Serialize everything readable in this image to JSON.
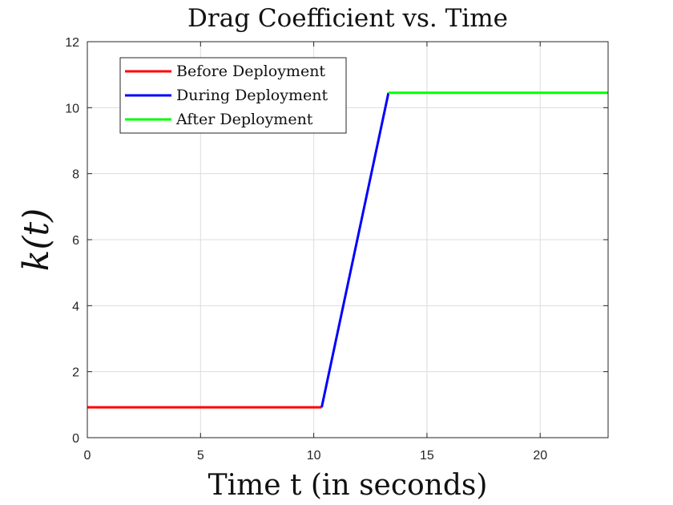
{
  "chart_data": {
    "type": "line",
    "title": "Drag Coefficient vs. Time",
    "xlabel": "Time t (in seconds)",
    "ylabel": "k(t)",
    "xlim": [
      0,
      23
    ],
    "ylim": [
      0,
      12
    ],
    "xticks": [
      0,
      5,
      10,
      15,
      20
    ],
    "yticks": [
      0,
      2,
      4,
      6,
      8,
      10,
      12
    ],
    "grid": true,
    "legend_position": "top-left",
    "series": [
      {
        "name": "Before Deployment",
        "color": "#ff0000",
        "x": [
          0,
          10.35
        ],
        "y": [
          0.92,
          0.92
        ]
      },
      {
        "name": "During Deployment",
        "color": "#0000ff",
        "x": [
          10.35,
          13.3
        ],
        "y": [
          0.92,
          10.45
        ]
      },
      {
        "name": "After Deployment",
        "color": "#00ff00",
        "x": [
          13.3,
          23
        ],
        "y": [
          10.45,
          10.45
        ]
      }
    ]
  }
}
